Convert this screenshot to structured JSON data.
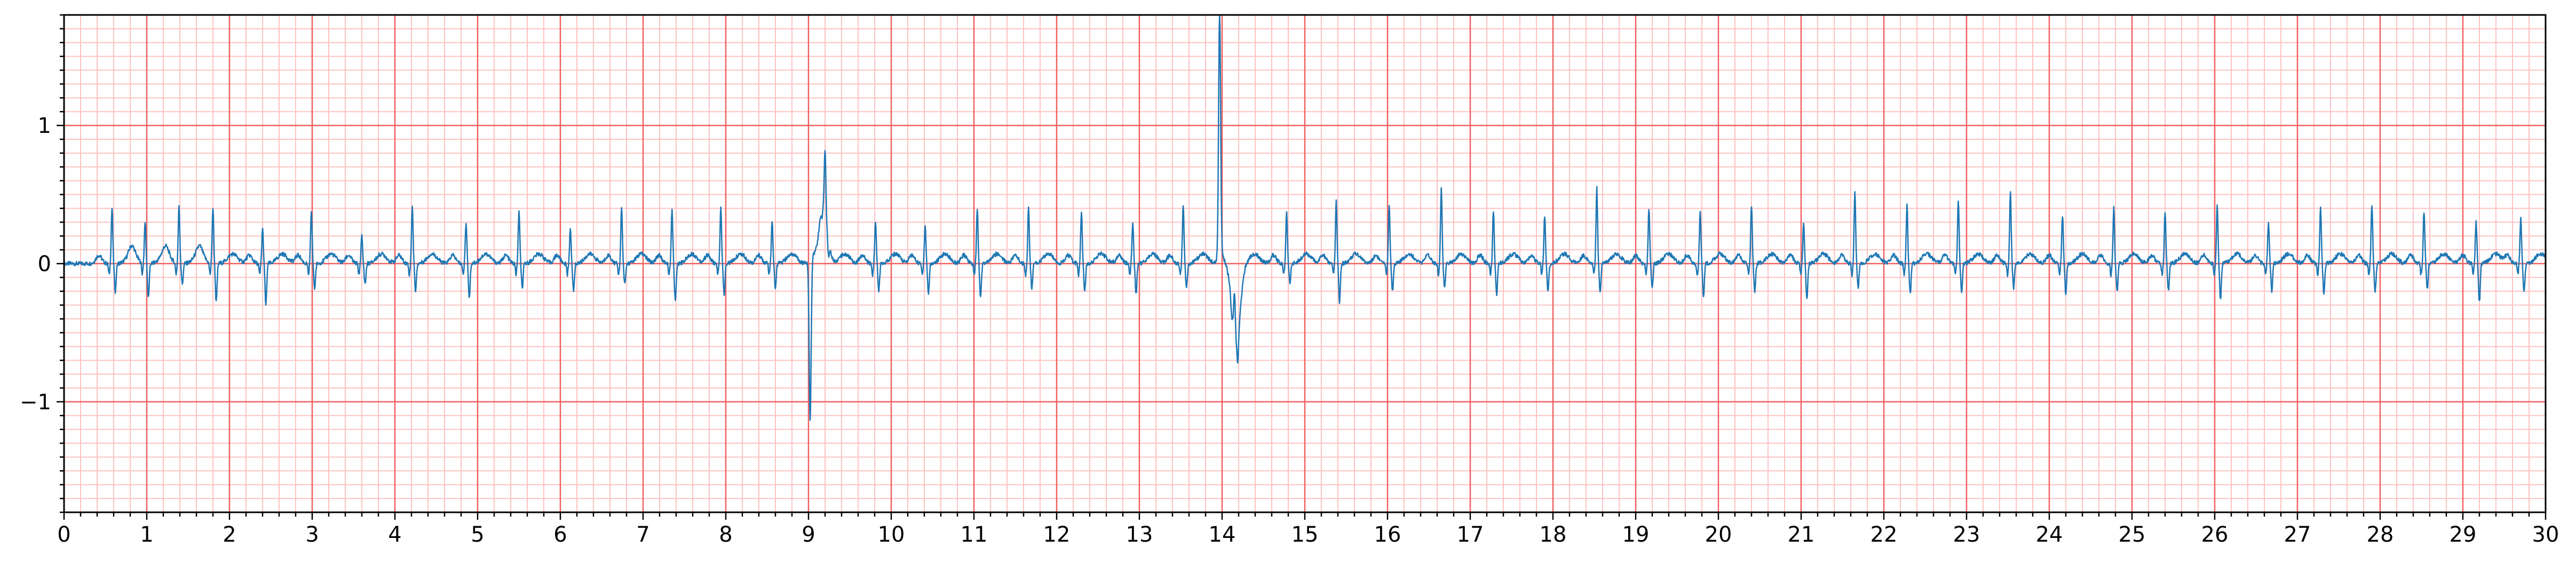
{
  "chart_data": {
    "type": "line",
    "title": "",
    "xlabel": "",
    "ylabel": "",
    "xlim": [
      0,
      30
    ],
    "ylim": [
      -1.8,
      1.8
    ],
    "x_ticks": [
      0,
      1,
      2,
      3,
      4,
      5,
      6,
      7,
      8,
      9,
      10,
      11,
      12,
      13,
      14,
      15,
      16,
      17,
      18,
      19,
      20,
      21,
      22,
      23,
      24,
      25,
      26,
      27,
      28,
      29,
      30
    ],
    "x_tick_labels": [
      "0",
      "1",
      "2",
      "3",
      "4",
      "5",
      "6",
      "7",
      "8",
      "9",
      "10",
      "11",
      "12",
      "13",
      "14",
      "15",
      "16",
      "17",
      "18",
      "19",
      "20",
      "21",
      "22",
      "23",
      "24",
      "25",
      "26",
      "27",
      "28",
      "29",
      "30"
    ],
    "y_ticks": [
      -1,
      0,
      1
    ],
    "y_tick_labels": [
      "−1",
      "0",
      "1"
    ],
    "grid": {
      "major": true,
      "minor": true,
      "major_x_step": 1,
      "major_y_step": 1,
      "minor_x_step": 0.2,
      "minor_y_step": 0.1
    },
    "colors": {
      "line": "#1f77b4",
      "major_grid": "#f06060",
      "minor_grid": "#ffc2c2",
      "axis": "#000000"
    },
    "series": [
      {
        "beats": [
          0.58,
          0.98,
          1.39,
          1.8,
          2.4,
          2.99,
          3.6,
          4.21,
          4.86,
          5.5,
          6.12,
          6.74,
          7.35,
          7.94,
          8.56,
          9.2,
          9.81,
          10.41,
          11.04,
          11.66,
          12.3,
          12.92,
          13.53,
          14.15,
          14.78,
          15.38,
          16.02,
          16.65,
          17.28,
          17.9,
          18.53,
          19.16,
          19.78,
          20.4,
          21.03,
          21.65,
          22.28,
          22.9,
          23.53,
          24.16,
          24.78,
          25.4,
          26.03,
          26.65,
          27.28,
          27.9,
          28.53,
          29.16,
          29.7
        ],
        "r_amplitudes": [
          0.4,
          0.3,
          0.42,
          0.4,
          0.25,
          0.38,
          0.2,
          0.42,
          0.3,
          0.38,
          0.25,
          0.4,
          0.38,
          0.4,
          0.3,
          0.43,
          0.3,
          0.28,
          0.4,
          0.4,
          0.38,
          0.3,
          0.42,
          0.3,
          0.38,
          0.45,
          0.42,
          0.55,
          0.38,
          0.35,
          0.55,
          0.4,
          0.38,
          0.42,
          0.3,
          0.52,
          0.42,
          0.45,
          0.52,
          0.35,
          0.4,
          0.38,
          0.42,
          0.3,
          0.4,
          0.42,
          0.38,
          0.3,
          0.32
        ],
        "s_amplitudes": [
          -0.2,
          -0.25,
          -0.15,
          -0.28,
          -0.3,
          -0.18,
          -0.15,
          -0.2,
          -0.25,
          -0.18,
          -0.2,
          -0.15,
          -0.28,
          -0.22,
          -0.18,
          -0.15,
          -0.2,
          -0.22,
          -0.25,
          -0.18,
          -0.2,
          -0.22,
          -0.18,
          -0.2,
          -0.15,
          -0.28,
          -0.2,
          -0.18,
          -0.22,
          -0.2,
          -0.2,
          -0.18,
          -0.25,
          -0.2,
          -0.26,
          -0.18,
          -0.22,
          -0.2,
          -0.18,
          -0.22,
          -0.2,
          -0.2,
          -0.26,
          -0.2,
          -0.22,
          -0.2,
          -0.18,
          -0.28,
          -0.2
        ],
        "artifacts": [
          {
            "x": 9.02,
            "y": -1.18
          },
          {
            "x": 9.18,
            "y": 0.43
          },
          {
            "x": 13.97,
            "y": 1.8
          },
          {
            "x": 14.17,
            "y": -0.55
          }
        ]
      }
    ]
  }
}
